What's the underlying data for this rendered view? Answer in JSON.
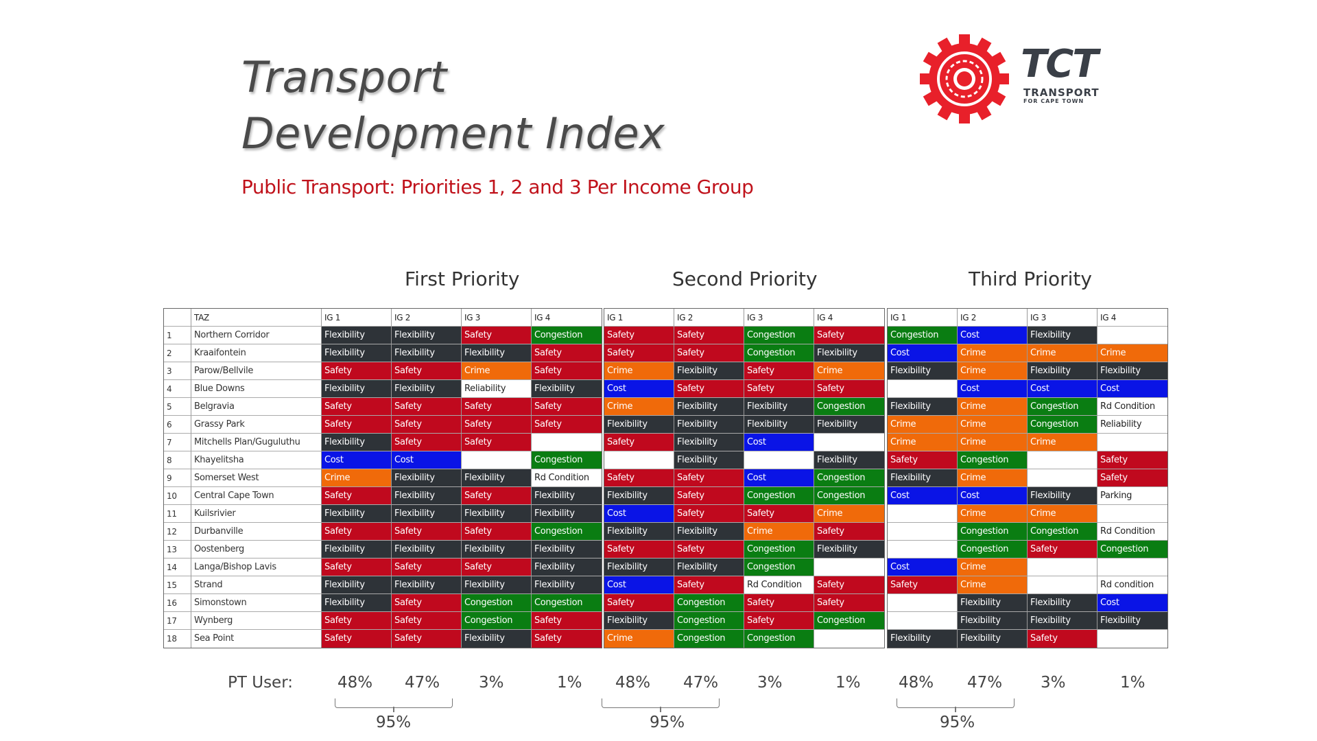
{
  "title_line1": "Transport",
  "title_line2": "Development Index",
  "subtitle": "Public Transport: Priorities 1, 2 and 3 Per Income Group",
  "logo": {
    "brand": "TCT",
    "line1": "TRANSPORT",
    "line2": "FOR CAPE TOWN"
  },
  "colors": {
    "Flexibility": "#2e3338",
    "Safety": "#c0091e",
    "Congestion": "#0a7d12",
    "Crime": "#f06a0a",
    "Cost": "#0a14e6",
    "none": "#ffffff"
  },
  "tables": [
    {
      "title": "First Priority",
      "header": [
        "",
        "TAZ",
        "IG 1",
        "IG 2",
        "IG 3",
        "IG 4"
      ],
      "rows": [
        {
          "n": "1",
          "taz": "Northern Corridor",
          "ig": [
            "Flexibility",
            "Flexibility",
            "Safety",
            "Congestion"
          ]
        },
        {
          "n": "2",
          "taz": "Kraaifontein",
          "ig": [
            "Flexibility",
            "Flexibility",
            "Flexibility",
            "Safety"
          ]
        },
        {
          "n": "3",
          "taz": "Parow/Bellvile",
          "ig": [
            "Safety",
            "Safety",
            "Crime",
            "Safety"
          ]
        },
        {
          "n": "4",
          "taz": "Blue Downs",
          "ig": [
            "Flexibility",
            "Flexibility",
            "Reliability",
            "Flexibility"
          ]
        },
        {
          "n": "5",
          "taz": "Belgravia",
          "ig": [
            "Safety",
            "Safety",
            "Safety",
            "Safety"
          ]
        },
        {
          "n": "6",
          "taz": "Grassy Park",
          "ig": [
            "Safety",
            "Safety",
            "Safety",
            "Safety"
          ]
        },
        {
          "n": "7",
          "taz": "Mitchells Plan/Guguluthu",
          "ig": [
            "Flexibility",
            "Safety",
            "Safety",
            ""
          ]
        },
        {
          "n": "8",
          "taz": "Khayelitsha",
          "ig": [
            "Cost",
            "Cost",
            "",
            "Congestion"
          ]
        },
        {
          "n": "9",
          "taz": "Somerset West",
          "ig": [
            "Crime",
            "Flexibility",
            "Flexibility",
            "Rd Condition"
          ]
        },
        {
          "n": "10",
          "taz": "Central Cape Town",
          "ig": [
            "Safety",
            "Flexibility",
            "Safety",
            "Flexibility"
          ]
        },
        {
          "n": "11",
          "taz": "Kuilsrivier",
          "ig": [
            "Flexibility",
            "Flexibility",
            "Flexibility",
            "Flexibility"
          ]
        },
        {
          "n": "12",
          "taz": "Durbanville",
          "ig": [
            "Safety",
            "Safety",
            "Safety",
            "Congestion"
          ]
        },
        {
          "n": "13",
          "taz": "Oostenberg",
          "ig": [
            "Flexibility",
            "Flexibility",
            "Flexibility",
            "Flexibility"
          ]
        },
        {
          "n": "14",
          "taz": "Langa/Bishop Lavis",
          "ig": [
            "Safety",
            "Safety",
            "Safety",
            "Flexibility"
          ]
        },
        {
          "n": "15",
          "taz": "Strand",
          "ig": [
            "Flexibility",
            "Flexibility",
            "Flexibility",
            "Flexibility"
          ]
        },
        {
          "n": "16",
          "taz": "Simonstown",
          "ig": [
            "Flexibility",
            "Safety",
            "Congestion",
            "Congestion"
          ]
        },
        {
          "n": "17",
          "taz": "Wynberg",
          "ig": [
            "Safety",
            "Safety",
            "Congestion",
            "Safety"
          ]
        },
        {
          "n": "18",
          "taz": "Sea Point",
          "ig": [
            "Safety",
            "Safety",
            "Flexibility",
            "Safety"
          ]
        }
      ]
    },
    {
      "title": "Second Priority",
      "header": [
        "IG 1",
        "IG 2",
        "IG 3",
        "IG 4"
      ],
      "rows": [
        [
          "Safety",
          "Safety",
          "Congestion",
          "Safety"
        ],
        [
          "Safety",
          "Safety",
          "Congestion",
          "Flexibility"
        ],
        [
          "Crime",
          "Flexibility",
          "Safety",
          "Crime"
        ],
        [
          "Cost",
          "Safety",
          "Safety",
          "Safety"
        ],
        [
          "Crime",
          "Flexibility",
          "Flexibility",
          "Congestion"
        ],
        [
          "Flexibility",
          "Flexibility",
          "Flexibility",
          "Flexibility"
        ],
        [
          "Safety",
          "Flexibility",
          "Cost",
          ""
        ],
        [
          "",
          "Flexibility",
          "",
          "Flexibility"
        ],
        [
          "Safety",
          "Safety",
          "Cost",
          "Congestion"
        ],
        [
          "Flexibility",
          "Safety",
          "Congestion",
          "Congestion"
        ],
        [
          "Cost",
          "Safety",
          "Safety",
          "Crime"
        ],
        [
          "Flexibility",
          "Flexibility",
          "Crime",
          "Safety"
        ],
        [
          "Safety",
          "Safety",
          "Congestion",
          "Flexibility"
        ],
        [
          "Flexibility",
          "Flexibility",
          "Congestion",
          ""
        ],
        [
          "Cost",
          "Safety",
          "Rd Condition",
          "Safety"
        ],
        [
          "Safety",
          "Congestion",
          "Safety",
          "Safety"
        ],
        [
          "Flexibility",
          "Congestion",
          "Safety",
          "Congestion"
        ],
        [
          "Crime",
          "Congestion",
          "Congestion",
          ""
        ]
      ]
    },
    {
      "title": "Third Priority",
      "header": [
        "IG 1",
        "IG 2",
        "IG 3",
        "IG 4"
      ],
      "rows": [
        [
          "Congestion",
          "Cost",
          "Flexibility",
          ""
        ],
        [
          "Cost",
          "Crime",
          "Crime",
          "Crime"
        ],
        [
          "Flexibility",
          "Crime",
          "Flexibility",
          "Flexibility"
        ],
        [
          "",
          "Cost",
          "Cost",
          "Cost"
        ],
        [
          "Flexibility",
          "Crime",
          "Congestion",
          "Rd Condition"
        ],
        [
          "Crime",
          "Crime",
          "Congestion",
          "Reliability"
        ],
        [
          "Crime",
          "Crime",
          "Crime",
          ""
        ],
        [
          "Safety",
          "Congestion",
          "",
          "Safety"
        ],
        [
          "Flexibility",
          "Crime",
          "",
          "Safety"
        ],
        [
          "Cost",
          "Cost",
          "Flexibility",
          "Parking"
        ],
        [
          "",
          "Crime",
          "Crime",
          ""
        ],
        [
          "",
          "Congestion",
          "Congestion",
          "Rd Condition"
        ],
        [
          "",
          "Congestion",
          "Safety",
          "Congestion"
        ],
        [
          "Cost",
          "Crime",
          "",
          ""
        ],
        [
          "Safety",
          "Crime",
          "",
          "Rd condition"
        ],
        [
          "",
          "Flexibility",
          "Flexibility",
          "Cost"
        ],
        [
          "",
          "Flexibility",
          "Flexibility",
          "Flexibility"
        ],
        [
          "Flexibility",
          "Flexibility",
          "Safety",
          ""
        ]
      ]
    }
  ],
  "pt_user": {
    "label": "PT User:",
    "percents": [
      "48%",
      "47%",
      "3%",
      "1%"
    ],
    "total": "95%"
  }
}
